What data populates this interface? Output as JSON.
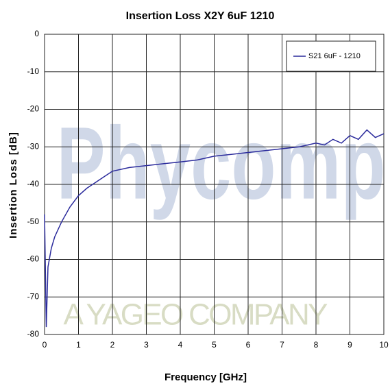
{
  "chart_data": {
    "type": "line",
    "title": "Insertion Loss X2Y 6uF 1210",
    "x_label": "Frequency [GHz]",
    "y_label": "Insertion Loss [dB]",
    "watermark": "Phycomp",
    "watermark_subtitle": "A YAGEO COMPANY",
    "x": [
      0,
      0.02,
      0.05,
      0.1,
      0.2,
      0.3,
      0.5,
      0.75,
      1,
      1.25,
      1.5,
      1.75,
      2,
      2.5,
      3,
      3.5,
      4,
      4.5,
      5,
      5.5,
      6,
      6.5,
      7,
      7.5,
      8,
      8.25,
      8.5,
      8.75,
      9,
      9.25,
      9.5,
      9.75,
      10
    ],
    "series": [
      {
        "name": "S21 6uF - 1210",
        "color": "#2b2b9c",
        "values": [
          -48,
          -60,
          -78,
          -62,
          -57,
          -54,
          -50,
          -46,
          -43,
          -41,
          -39.5,
          -38,
          -36.5,
          -35.5,
          -35,
          -34.5,
          -34,
          -33.5,
          -32.5,
          -32,
          -31.5,
          -31,
          -30.5,
          -30,
          -29,
          -29.5,
          -28,
          -29,
          -27,
          -28,
          -25.5,
          -27.5,
          -26.5
        ]
      }
    ],
    "xlim": [
      0,
      10
    ],
    "xticks": [
      0,
      1,
      2,
      3,
      4,
      5,
      6,
      7,
      8,
      9,
      10
    ],
    "ylim": [
      -80,
      0
    ],
    "yticks": [
      0,
      -10,
      -20,
      -30,
      -40,
      -50,
      -60,
      -70,
      -80
    ],
    "grid": true,
    "legend": "upper right"
  }
}
